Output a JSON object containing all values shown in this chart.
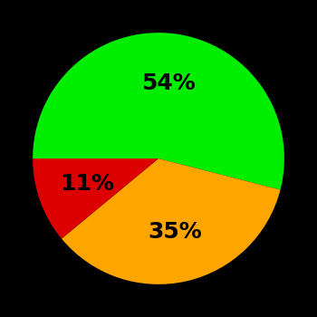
{
  "slices": [
    54,
    35,
    11
  ],
  "colors": [
    "#00EE00",
    "#FFA500",
    "#DD0000"
  ],
  "labels": [
    "54%",
    "35%",
    "11%"
  ],
  "background_color": "#000000",
  "figsize": [
    3.5,
    3.5
  ],
  "dpi": 100,
  "label_fontsize": 18,
  "label_fontweight": "bold",
  "startangle": 180,
  "counterclock": false
}
